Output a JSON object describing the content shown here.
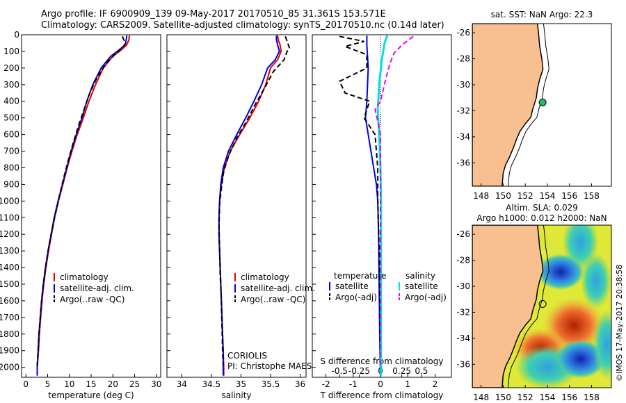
{
  "header": {
    "title_line1": "Argo profile: IF 6900909_139 09-May-2017 20170510_85 31.361S 153.571E",
    "title_line2": "Climatology: CARS2009. Satellite-adjusted climatology: synTS_20170510.nc (0.14d later)"
  },
  "colors": {
    "climatology": "#e00000",
    "satellite": "#0000dd",
    "argo": "#000000",
    "salinity_satellite": "#00e0e0",
    "salinity_argo": "#ee00ee",
    "land": "#f8c090",
    "marker": "#20c060"
  },
  "depth_axis": {
    "ticks": [
      0,
      100,
      200,
      300,
      400,
      500,
      600,
      700,
      800,
      900,
      1000,
      1100,
      1200,
      1300,
      1400,
      1500,
      1600,
      1700,
      1800,
      1900,
      2000
    ],
    "range": [
      0,
      2060
    ]
  },
  "chart_data": [
    {
      "type": "line",
      "panel": "temperature",
      "xlabel": "temperature (deg C)",
      "xlim": [
        -1,
        31
      ],
      "xticks": [
        0,
        5,
        10,
        15,
        20,
        25,
        30
      ],
      "legend": [
        "climatology",
        "satellite-adj. clim.",
        "Argo(..raw -QC)"
      ],
      "series": [
        {
          "name": "climatology",
          "color": "#e00000",
          "points": [
            [
              23.8,
              5
            ],
            [
              23.7,
              30
            ],
            [
              23.2,
              60
            ],
            [
              22.0,
              90
            ],
            [
              20.0,
              130
            ],
            [
              17.8,
              200
            ],
            [
              16.0,
              300
            ],
            [
              14.5,
              400
            ],
            [
              13.2,
              500
            ],
            [
              11.8,
              600
            ],
            [
              10.6,
              700
            ],
            [
              9.5,
              800
            ],
            [
              8.5,
              900
            ],
            [
              7.5,
              1000
            ],
            [
              6.6,
              1100
            ],
            [
              5.9,
              1200
            ],
            [
              5.2,
              1300
            ],
            [
              4.6,
              1400
            ],
            [
              4.1,
              1500
            ],
            [
              3.7,
              1600
            ],
            [
              3.4,
              1700
            ],
            [
              3.1,
              1800
            ],
            [
              2.9,
              1900
            ],
            [
              2.6,
              2000
            ],
            [
              2.6,
              2050
            ]
          ]
        },
        {
          "name": "satellite-adj. clim.",
          "color": "#0000dd",
          "points": [
            [
              23.2,
              5
            ],
            [
              23.1,
              30
            ],
            [
              22.8,
              60
            ],
            [
              21.5,
              90
            ],
            [
              19.5,
              130
            ],
            [
              17.3,
              200
            ],
            [
              15.4,
              300
            ],
            [
              14.0,
              400
            ],
            [
              12.9,
              500
            ],
            [
              11.6,
              600
            ],
            [
              10.4,
              700
            ],
            [
              9.4,
              800
            ],
            [
              8.4,
              900
            ],
            [
              7.4,
              1000
            ],
            [
              6.5,
              1100
            ],
            [
              5.8,
              1200
            ],
            [
              5.1,
              1300
            ],
            [
              4.5,
              1400
            ],
            [
              4.0,
              1500
            ],
            [
              3.6,
              1600
            ],
            [
              3.3,
              1700
            ],
            [
              3.0,
              1800
            ],
            [
              2.8,
              1900
            ],
            [
              2.6,
              2000
            ],
            [
              2.6,
              2050
            ]
          ]
        },
        {
          "name": "Argo(..raw -QC)",
          "color": "#000000",
          "dashed": true,
          "points": [
            [
              22.2,
              10
            ],
            [
              22.5,
              30
            ],
            [
              23.0,
              50
            ],
            [
              22.3,
              75
            ],
            [
              20.8,
              110
            ],
            [
              18.5,
              170
            ],
            [
              16.3,
              260
            ],
            [
              14.7,
              350
            ],
            [
              13.5,
              440
            ],
            [
              12.2,
              540
            ],
            [
              11.0,
              640
            ],
            [
              9.8,
              750
            ],
            [
              8.7,
              860
            ],
            [
              7.6,
              980
            ],
            [
              6.6,
              1100
            ],
            [
              5.8,
              1200
            ],
            [
              5.1,
              1300
            ],
            [
              4.5,
              1400
            ],
            [
              4.0,
              1500
            ],
            [
              3.6,
              1600
            ],
            [
              3.3,
              1700
            ],
            [
              3.0,
              1800
            ],
            [
              2.8,
              1900
            ],
            [
              2.6,
              1990
            ]
          ]
        }
      ]
    },
    {
      "type": "line",
      "panel": "salinity",
      "xlabel": "salinity",
      "xlim": [
        33.75,
        36.1
      ],
      "xticks": [
        34,
        34.5,
        35,
        35.5,
        36
      ],
      "xtick_labels": [
        "34",
        "34.5",
        "35",
        "35.5",
        "36"
      ],
      "legend": [
        "climatology",
        "satellite-adj. clim.",
        "Argo(..raw -QC)"
      ],
      "annotation_line1": "CORIOLIS",
      "annotation_line2": "PI: Christophe MAES",
      "series": [
        {
          "name": "climatology",
          "color": "#e00000",
          "points": [
            [
              35.62,
              5
            ],
            [
              35.63,
              30
            ],
            [
              35.66,
              60
            ],
            [
              35.68,
              100
            ],
            [
              35.62,
              150
            ],
            [
              35.5,
              200
            ],
            [
              35.42,
              300
            ],
            [
              35.3,
              400
            ],
            [
              35.15,
              500
            ],
            [
              34.98,
              600
            ],
            [
              34.82,
              700
            ],
            [
              34.72,
              800
            ],
            [
              34.67,
              900
            ],
            [
              34.64,
              1000
            ],
            [
              34.63,
              1100
            ],
            [
              34.63,
              1200
            ],
            [
              34.64,
              1300
            ],
            [
              34.65,
              1400
            ],
            [
              34.66,
              1500
            ],
            [
              34.67,
              1600
            ],
            [
              34.68,
              1700
            ],
            [
              34.69,
              1800
            ],
            [
              34.7,
              1900
            ],
            [
              34.71,
              2000
            ],
            [
              34.71,
              2050
            ]
          ]
        },
        {
          "name": "satellite-adj. clim.",
          "color": "#0000dd",
          "points": [
            [
              35.6,
              5
            ],
            [
              35.6,
              30
            ],
            [
              35.62,
              60
            ],
            [
              35.65,
              100
            ],
            [
              35.58,
              150
            ],
            [
              35.45,
              200
            ],
            [
              35.35,
              300
            ],
            [
              35.22,
              400
            ],
            [
              35.08,
              500
            ],
            [
              34.93,
              600
            ],
            [
              34.79,
              700
            ],
            [
              34.7,
              800
            ],
            [
              34.66,
              900
            ],
            [
              34.64,
              1000
            ],
            [
              34.63,
              1100
            ],
            [
              34.63,
              1200
            ],
            [
              34.64,
              1300
            ],
            [
              34.65,
              1400
            ],
            [
              34.66,
              1500
            ],
            [
              34.67,
              1600
            ],
            [
              34.68,
              1700
            ],
            [
              34.69,
              1800
            ],
            [
              34.7,
              1900
            ],
            [
              34.7,
              2000
            ],
            [
              34.7,
              2050
            ]
          ]
        },
        {
          "name": "Argo(..raw -QC)",
          "color": "#000000",
          "dashed": true,
          "points": [
            [
              35.75,
              10
            ],
            [
              35.78,
              40
            ],
            [
              35.82,
              80
            ],
            [
              35.78,
              100
            ],
            [
              35.73,
              150
            ],
            [
              35.55,
              220
            ],
            [
              35.4,
              320
            ],
            [
              35.24,
              420
            ],
            [
              35.08,
              530
            ],
            [
              34.93,
              620
            ],
            [
              34.8,
              720
            ],
            [
              34.71,
              820
            ],
            [
              34.67,
              920
            ],
            [
              34.64,
              1020
            ],
            [
              34.63,
              1150
            ],
            [
              34.64,
              1300
            ],
            [
              34.65,
              1450
            ],
            [
              34.67,
              1600
            ],
            [
              34.68,
              1750
            ],
            [
              34.69,
              1900
            ],
            [
              34.7,
              1990
            ]
          ]
        }
      ]
    },
    {
      "type": "line",
      "panel": "difference",
      "xlabel_top": "S difference from climatology",
      "xlabel": "T difference from climatology",
      "t_xlim": [
        -2.5,
        2.6
      ],
      "t_xticks": [
        -2,
        -1,
        0,
        1,
        2
      ],
      "s_ticks": [
        [
          -0.5,
          -1.5
        ],
        [
          -0.25,
          -0.78
        ],
        [
          0,
          0
        ],
        [
          0.25,
          0.78
        ],
        [
          0.5,
          1.5
        ]
      ],
      "s_tick_labels": [
        "-0.5",
        "-0.25",
        "0",
        "0.25",
        "0.5"
      ],
      "legend": {
        "temperature_header": "temperature",
        "salinity_header": "salinity",
        "satellite": "satellite",
        "argo": "Argo(-adj)"
      },
      "series": [
        {
          "name": "temperature satellite",
          "color": "#0000dd",
          "points": [
            [
              -0.5,
              5
            ],
            [
              -0.5,
              60
            ],
            [
              -0.45,
              200
            ],
            [
              -0.5,
              400
            ],
            [
              -0.55,
              500
            ],
            [
              -0.45,
              600
            ],
            [
              -0.35,
              700
            ],
            [
              -0.25,
              800
            ],
            [
              -0.15,
              900
            ],
            [
              -0.1,
              1000
            ],
            [
              -0.07,
              1200
            ],
            [
              -0.05,
              1500
            ],
            [
              -0.03,
              1800
            ],
            [
              0,
              2050
            ]
          ]
        },
        {
          "name": "temperature Argo(-adj)",
          "color": "#000000",
          "dashed": true,
          "points": [
            [
              -1.5,
              10
            ],
            [
              -0.6,
              40
            ],
            [
              -1.3,
              70
            ],
            [
              -0.5,
              120
            ],
            [
              -0.5,
              200
            ],
            [
              -1.5,
              280
            ],
            [
              -1.3,
              350
            ],
            [
              -0.4,
              400
            ],
            [
              -0.6,
              500
            ],
            [
              -0.2,
              600
            ],
            [
              -0.1,
              800
            ],
            [
              -0.1,
              1000
            ],
            [
              -0.05,
              1300
            ],
            [
              -0.03,
              1600
            ],
            [
              0,
              2000
            ]
          ]
        },
        {
          "name": "salinity satellite",
          "color": "#00e0e0",
          "points": [
            [
              0.25,
              5
            ],
            [
              0.15,
              50
            ],
            [
              0.05,
              150
            ],
            [
              -0.05,
              300
            ],
            [
              -0.1,
              450
            ],
            [
              -0.05,
              600
            ],
            [
              0,
              800
            ],
            [
              0.02,
              1000
            ],
            [
              0.02,
              1400
            ],
            [
              0.02,
              1800
            ],
            [
              0.02,
              2050
            ]
          ]
        },
        {
          "name": "salinity Argo(-adj)",
          "color": "#ee00ee",
          "dashed": true,
          "points": [
            [
              1.2,
              10
            ],
            [
              0.8,
              60
            ],
            [
              0.5,
              110
            ],
            [
              0.35,
              170
            ],
            [
              0.2,
              260
            ],
            [
              0.1,
              330
            ],
            [
              0,
              400
            ],
            [
              -0.2,
              450
            ],
            [
              -0.1,
              520
            ],
            [
              0,
              600
            ],
            [
              0,
              2000
            ]
          ]
        }
      ]
    }
  ],
  "maps": {
    "lon_ticks": [
      148,
      150,
      152,
      154,
      156,
      158
    ],
    "lat_ticks": [
      -26,
      -28,
      -30,
      -32,
      -34,
      -36
    ],
    "lat_tick_labels": [
      "-26",
      "-28",
      "-30",
      "-32",
      "-34",
      "-36"
    ],
    "lon_range": [
      147.2,
      159.8
    ],
    "lat_range": [
      -25.3,
      -37.8
    ],
    "float_position": {
      "lon": 153.571,
      "lat": -31.361
    },
    "sst_title": "sat. SST: NaN Argo: 22.3",
    "sla_title_line1": "Altim. SLA: 0.029",
    "sla_title_line2": "Argo h1000: 0.012 h2000: NaN"
  },
  "footer": {
    "timestamp": "©IMOS 17-May-2017 20:38:58"
  }
}
